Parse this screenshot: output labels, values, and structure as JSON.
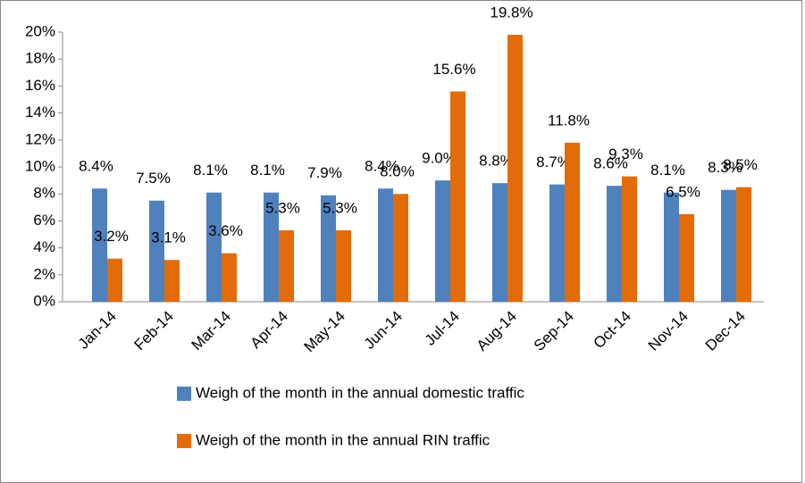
{
  "chart_data": {
    "type": "bar",
    "categories": [
      "Jan-14",
      "Feb-14",
      "Mar-14",
      "Apr-14",
      "May-14",
      "Jun-14",
      "Jul-14",
      "Aug-14",
      "Sep-14",
      "Oct-14",
      "Nov-14",
      "Dec-14"
    ],
    "series": [
      {
        "name": "Weigh of the month in the annual domestic traffic",
        "color": "#4f81bd",
        "values": [
          8.4,
          7.5,
          8.1,
          8.1,
          7.9,
          8.4,
          9.0,
          8.8,
          8.7,
          8.6,
          8.1,
          8.3
        ],
        "value_labels": [
          "8.4%",
          "7.5%",
          "8.1%",
          "8.1%",
          "7.9%",
          "8.4%",
          "9.0%",
          "8.8%",
          "8.7%",
          "8.6%",
          "8.1%",
          "8.3%"
        ]
      },
      {
        "name": "Weigh of the month in the annual RIN traffic",
        "color": "#e36c09",
        "values": [
          3.2,
          3.1,
          3.6,
          5.3,
          5.3,
          8.0,
          15.6,
          19.8,
          11.8,
          9.3,
          6.5,
          8.5
        ],
        "value_labels": [
          "3.2%",
          "3.1%",
          "3.6%",
          "5.3%",
          "5.3%",
          "8.0%",
          "15.6%",
          "19.8%",
          "11.8%",
          "9.3%",
          "6.5%",
          "8.5%"
        ]
      }
    ],
    "ylim": [
      0,
      20
    ],
    "yticks": [
      {
        "value": 0,
        "label": "0%"
      },
      {
        "value": 2,
        "label": "2%"
      },
      {
        "value": 4,
        "label": "4%"
      },
      {
        "value": 6,
        "label": "6%"
      },
      {
        "value": 8,
        "label": "8%"
      },
      {
        "value": 10,
        "label": "10%"
      },
      {
        "value": 12,
        "label": "12%"
      },
      {
        "value": 14,
        "label": "14%"
      },
      {
        "value": 16,
        "label": "16%"
      },
      {
        "value": 18,
        "label": "18%"
      },
      {
        "value": 20,
        "label": "20%"
      }
    ],
    "grid": false,
    "legend": "bottom"
  }
}
